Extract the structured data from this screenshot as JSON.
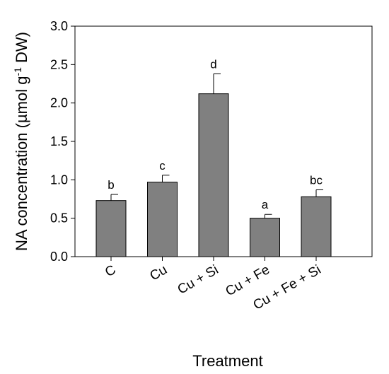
{
  "chart_data": {
    "type": "bar",
    "categories": [
      "C",
      "Cu",
      "Cu + Si",
      "Cu + Fe",
      "Cu + Fe + Si"
    ],
    "values": [
      0.73,
      0.97,
      2.12,
      0.5,
      0.78
    ],
    "errors": [
      0.08,
      0.09,
      0.26,
      0.05,
      0.09
    ],
    "significance_letters": [
      "b",
      "c",
      "d",
      "a",
      "bc"
    ],
    "xlabel": "Treatment",
    "ylabel": "NA concentration (µmol g",
    "ylabel_superscript": "-1",
    "ylabel_suffix": " DW)",
    "ylim": [
      0.0,
      3.0
    ],
    "yticks": [
      "0.0",
      "0.5",
      "1.0",
      "1.5",
      "2.0",
      "2.5",
      "3.0"
    ],
    "bar_color": "#808080",
    "grid": false,
    "legend": "none"
  }
}
